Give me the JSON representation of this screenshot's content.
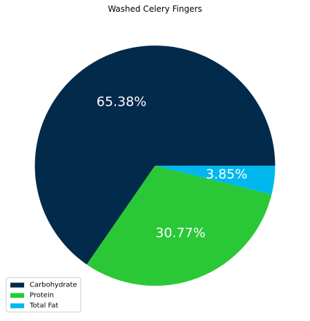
{
  "chart_data": {
    "type": "pie",
    "title": "Washed Celery Fingers",
    "categories": [
      "Carbohydrate",
      "Protein",
      "Total Fat"
    ],
    "values": [
      65.38,
      30.77,
      3.85
    ],
    "labels": [
      "65.38%",
      "30.77%",
      "3.85%"
    ],
    "colors": [
      "#022a4a",
      "#2ac837",
      "#00b7ee"
    ],
    "start_angle_deg": 0,
    "direction": "counterclockwise",
    "legend_position": "lower-left"
  }
}
